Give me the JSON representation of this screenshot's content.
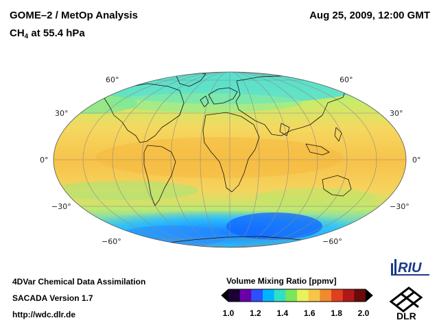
{
  "header": {
    "title": "GOME–2 / MetOp Analysis",
    "timestamp": "Aug 25, 2009, 12:00 GMT",
    "species_prefix": "CH",
    "species_sub": "4",
    "species_suffix": " at 55.4 hPa"
  },
  "map": {
    "projection": "Mollweide (global)",
    "lat_labels": [
      "60°",
      "30°",
      "0°",
      "−30°",
      "−60°"
    ],
    "field_description_values_ppmv": {
      "tropics": 1.62,
      "arctic_band": 1.47,
      "antarctic_low": 1.2
    }
  },
  "colorbar": {
    "title": "Volume Mixing Ratio [ppmv]",
    "ticks": [
      "1.0",
      "1.2",
      "1.4",
      "1.6",
      "1.8",
      "2.0"
    ],
    "colors": [
      "#1a0036",
      "#6a00a8",
      "#2b50ff",
      "#00b4ff",
      "#2ee0c8",
      "#7ae65a",
      "#e8f25a",
      "#f7c548",
      "#f08a2c",
      "#e04020",
      "#b01818",
      "#6a0a0a"
    ]
  },
  "footer": {
    "line1": "4DVar Chemical Data Assimilation",
    "line2": "SACADA Version 1.7",
    "line3": "http://wdc.dlr.de"
  },
  "logos": {
    "riu": "RIU",
    "dlr": "DLR"
  }
}
